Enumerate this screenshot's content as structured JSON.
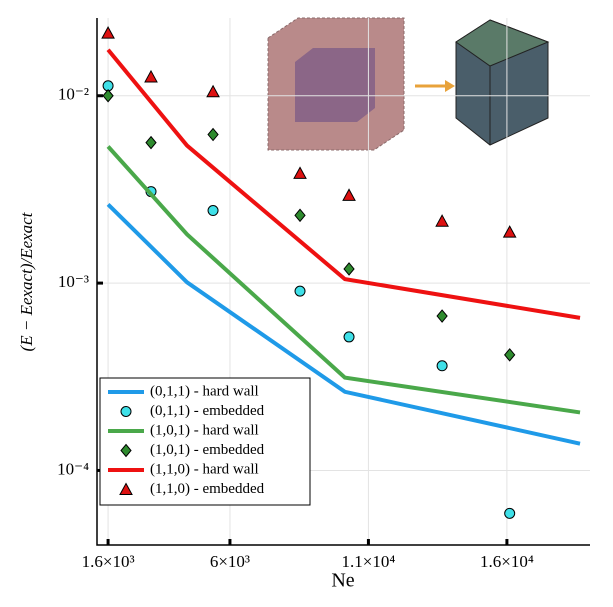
{
  "chart_data": {
    "type": "line",
    "xlabel": "Ne",
    "ylabel": "(E − Eexact)/Eexact",
    "xlim": [
      1200,
      19000
    ],
    "ylim": [
      4e-05,
      0.026
    ],
    "yscale": "log",
    "grid": true,
    "legend": "lower left",
    "xticks": [
      {
        "value": 1600,
        "label": "1.6×10³"
      },
      {
        "value": 6000,
        "label": "6×10³"
      },
      {
        "value": 11000,
        "label": "1.1×10⁴"
      },
      {
        "value": 16000,
        "label": "1.6×10⁴"
      }
    ],
    "yticks": [
      {
        "value": 0.0001,
        "label": "10⁻⁴"
      },
      {
        "value": 0.001,
        "label": "10⁻³"
      },
      {
        "value": 0.01,
        "label": "10⁻²"
      }
    ],
    "series": [
      {
        "name": "(0,1,1) - hard wall",
        "color": "#1f9ae8",
        "x": [
          1600,
          4450,
          10150,
          18640
        ],
        "values": [
          0.00263,
          0.00101,
          0.000263,
          0.000139
        ]
      },
      {
        "name": "(0,1,1) - embedded",
        "color": "#3fe0e8",
        "marker": "circle",
        "x": [
          1600,
          3150,
          5390,
          8530,
          10300,
          13660,
          16100
        ],
        "values": [
          0.0113,
          0.00308,
          0.00244,
          0.000906,
          0.000516,
          0.000362,
          5.9e-05
        ]
      },
      {
        "name": "(1,0,1) - hard wall",
        "color": "#4aa84a",
        "x": [
          1600,
          4450,
          10150,
          18640
        ],
        "values": [
          0.00536,
          0.00182,
          0.000313,
          0.000204
        ]
      },
      {
        "name": "(1,0,1) - embedded",
        "color": "#2e8b2e",
        "marker": "diamond",
        "x": [
          1600,
          3150,
          5390,
          8530,
          10300,
          13660,
          16100
        ],
        "values": [
          0.01,
          0.00562,
          0.00621,
          0.0023,
          0.00119,
          0.000667,
          0.000414
        ]
      },
      {
        "name": "(1,1,0) - hard wall",
        "color": "#ee1111",
        "x": [
          1600,
          4450,
          10150,
          18640
        ],
        "values": [
          0.0176,
          0.00542,
          0.00105,
          0.000652
        ]
      },
      {
        "name": "(1,1,0) - embedded",
        "color": "#dd1111",
        "marker": "triangle",
        "x": [
          1600,
          3150,
          5390,
          8530,
          10300,
          13660,
          16100
        ],
        "values": [
          0.0216,
          0.0126,
          0.0105,
          0.00385,
          0.00294,
          0.00214,
          0.00187
        ]
      }
    ]
  }
}
